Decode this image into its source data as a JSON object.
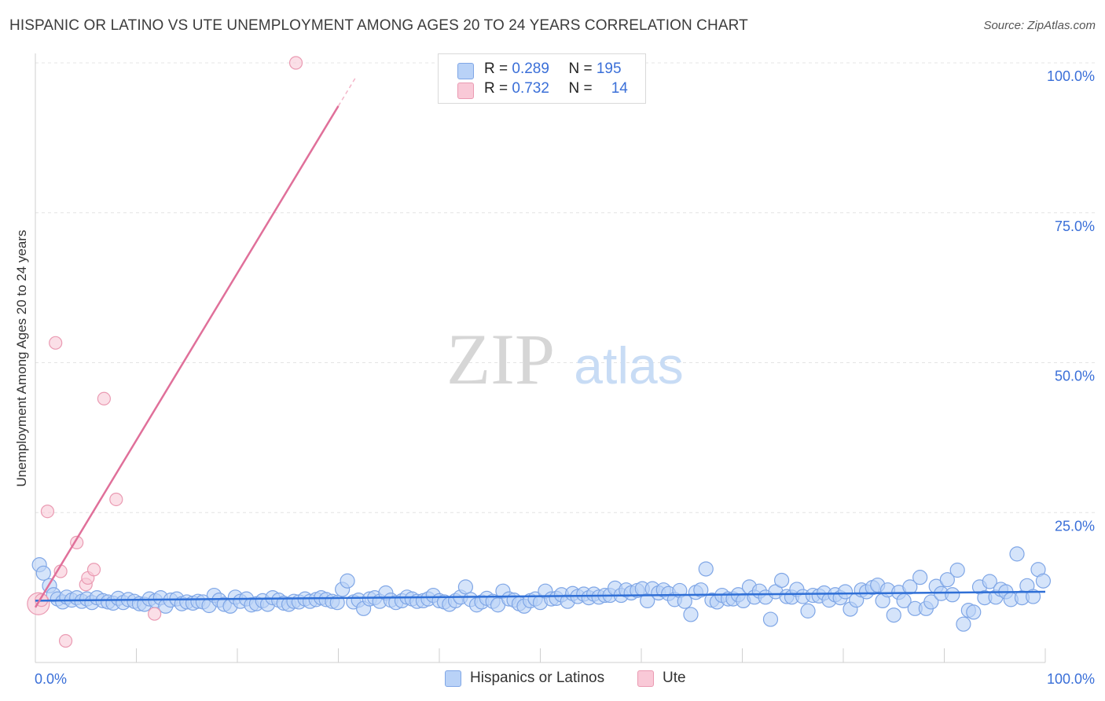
{
  "header": {
    "title": "HISPANIC OR LATINO VS UTE UNEMPLOYMENT AMONG AGES 20 TO 24 YEARS CORRELATION CHART",
    "source": "Source: ZipAtlas.com"
  },
  "watermark": {
    "zip": "ZIP",
    "atlas": "atlas"
  },
  "legend": {
    "r_label": "R = ",
    "n_label": "N = ",
    "series": [
      {
        "r": "0.289",
        "n": "195"
      },
      {
        "r": "0.732",
        "n": "14"
      }
    ]
  },
  "bottom_legend": {
    "items": [
      {
        "label": "Hispanics or Latinos"
      },
      {
        "label": "Ute"
      }
    ]
  },
  "chart_data": {
    "type": "scatter",
    "title": "HISPANIC OR LATINO VS UTE UNEMPLOYMENT AMONG AGES 20 TO 24 YEARS CORRELATION CHART",
    "xlabel": "",
    "ylabel": "Unemployment Among Ages 20 to 24 years",
    "xlim": [
      0,
      100
    ],
    "ylim": [
      0,
      100
    ],
    "x_tick_labels": [
      {
        "value": 0,
        "label": "0.0%"
      },
      {
        "value": 100,
        "label": "100.0%"
      }
    ],
    "y_tick_labels": [
      {
        "value": 25,
        "label": "25.0%"
      },
      {
        "value": 50,
        "label": "50.0%"
      },
      {
        "value": 75,
        "label": "75.0%"
      },
      {
        "value": 100,
        "label": "100.0%"
      }
    ],
    "colors": {
      "blue_fill": "#b9d2f7",
      "blue_stroke": "#7fa6e6",
      "blue_line": "#2f6fd6",
      "pink_fill": "#f9c9d7",
      "pink_stroke": "#ea9ab2",
      "pink_line": "#e0709a",
      "tick_label": "#3a6fd8",
      "grid": "#e4e4e4"
    },
    "series": [
      {
        "name": "Hispanics or Latinos",
        "r": 0.289,
        "n": 195,
        "trend": {
          "x0": 0,
          "y0": 10.3,
          "x1": 100,
          "y1": 11.8
        },
        "points": [
          [
            0.4,
            16.3
          ],
          [
            0.8,
            14.9
          ],
          [
            1.4,
            12.8
          ],
          [
            1.8,
            11.3
          ],
          [
            2.2,
            10.6
          ],
          [
            2.7,
            10.1
          ],
          [
            3.1,
            10.9
          ],
          [
            3.6,
            10.4
          ],
          [
            4.1,
            10.8
          ],
          [
            4.6,
            10.2
          ],
          [
            5.1,
            10.6
          ],
          [
            5.6,
            10.0
          ],
          [
            6.1,
            10.8
          ],
          [
            6.7,
            10.3
          ],
          [
            7.2,
            10.1
          ],
          [
            7.7,
            9.9
          ],
          [
            8.2,
            10.7
          ],
          [
            8.7,
            10.0
          ],
          [
            9.2,
            10.5
          ],
          [
            9.8,
            10.2
          ],
          [
            10.3,
            9.8
          ],
          [
            10.8,
            9.7
          ],
          [
            11.3,
            10.6
          ],
          [
            11.9,
            10.3
          ],
          [
            12.4,
            10.8
          ],
          [
            12.9,
            9.4
          ],
          [
            13.4,
            10.4
          ],
          [
            14.0,
            10.6
          ],
          [
            14.5,
            9.8
          ],
          [
            15.0,
            10.1
          ],
          [
            15.6,
            9.9
          ],
          [
            16.1,
            10.2
          ],
          [
            16.6,
            10.1
          ],
          [
            17.2,
            9.5
          ],
          [
            17.7,
            11.2
          ],
          [
            18.2,
            10.4
          ],
          [
            18.7,
            9.7
          ],
          [
            19.3,
            9.4
          ],
          [
            19.8,
            10.9
          ],
          [
            20.3,
            10.2
          ],
          [
            20.9,
            10.6
          ],
          [
            21.4,
            9.6
          ],
          [
            21.9,
            9.8
          ],
          [
            22.5,
            10.3
          ],
          [
            23.0,
            9.7
          ],
          [
            23.5,
            10.8
          ],
          [
            24.1,
            10.4
          ],
          [
            24.6,
            9.9
          ],
          [
            25.1,
            9.7
          ],
          [
            25.6,
            10.2
          ],
          [
            26.1,
            10.1
          ],
          [
            26.7,
            10.6
          ],
          [
            27.2,
            10.2
          ],
          [
            27.8,
            10.5
          ],
          [
            28.3,
            10.8
          ],
          [
            28.8,
            10.5
          ],
          [
            29.4,
            10.2
          ],
          [
            29.9,
            10.0
          ],
          [
            30.4,
            12.2
          ],
          [
            30.9,
            13.6
          ],
          [
            31.5,
            10.1
          ],
          [
            32.0,
            10.4
          ],
          [
            32.5,
            9.0
          ],
          [
            33.1,
            10.6
          ],
          [
            33.6,
            10.8
          ],
          [
            34.1,
            10.2
          ],
          [
            34.7,
            11.6
          ],
          [
            35.2,
            10.4
          ],
          [
            35.7,
            10.0
          ],
          [
            36.3,
            10.3
          ],
          [
            36.8,
            10.9
          ],
          [
            37.3,
            10.6
          ],
          [
            37.8,
            10.2
          ],
          [
            38.4,
            10.3
          ],
          [
            38.9,
            10.6
          ],
          [
            39.4,
            11.2
          ],
          [
            40.0,
            10.3
          ],
          [
            40.5,
            10.1
          ],
          [
            41.0,
            9.7
          ],
          [
            41.6,
            10.3
          ],
          [
            42.1,
            10.9
          ],
          [
            42.6,
            12.6
          ],
          [
            43.1,
            10.5
          ],
          [
            43.7,
            9.6
          ],
          [
            44.2,
            10.1
          ],
          [
            44.7,
            10.7
          ],
          [
            45.3,
            10.2
          ],
          [
            45.8,
            9.6
          ],
          [
            46.3,
            11.9
          ],
          [
            46.9,
            10.6
          ],
          [
            47.4,
            10.4
          ],
          [
            47.9,
            9.8
          ],
          [
            48.4,
            9.4
          ],
          [
            49.0,
            10.3
          ],
          [
            49.5,
            10.6
          ],
          [
            50.0,
            10.0
          ],
          [
            50.5,
            11.9
          ],
          [
            51.1,
            10.6
          ],
          [
            51.6,
            10.7
          ],
          [
            52.1,
            11.3
          ],
          [
            52.7,
            10.2
          ],
          [
            53.2,
            11.5
          ],
          [
            53.7,
            11.0
          ],
          [
            54.3,
            11.4
          ],
          [
            54.8,
            10.8
          ],
          [
            55.3,
            11.4
          ],
          [
            55.8,
            10.9
          ],
          [
            56.4,
            11.2
          ],
          [
            56.9,
            11.2
          ],
          [
            57.4,
            12.4
          ],
          [
            58.0,
            11.2
          ],
          [
            58.5,
            12.1
          ],
          [
            59.0,
            11.6
          ],
          [
            59.6,
            12.0
          ],
          [
            60.1,
            12.3
          ],
          [
            60.6,
            10.3
          ],
          [
            61.1,
            12.3
          ],
          [
            61.7,
            11.6
          ],
          [
            62.2,
            12.1
          ],
          [
            62.7,
            11.5
          ],
          [
            63.3,
            10.5
          ],
          [
            63.8,
            12.0
          ],
          [
            64.3,
            10.2
          ],
          [
            64.9,
            8.0
          ],
          [
            65.4,
            11.7
          ],
          [
            65.9,
            12.1
          ],
          [
            66.4,
            15.6
          ],
          [
            67.0,
            10.4
          ],
          [
            67.5,
            10.1
          ],
          [
            68.0,
            11.2
          ],
          [
            68.6,
            10.6
          ],
          [
            69.1,
            10.6
          ],
          [
            69.6,
            11.3
          ],
          [
            70.1,
            10.3
          ],
          [
            70.7,
            12.6
          ],
          [
            71.2,
            10.9
          ],
          [
            71.7,
            11.9
          ],
          [
            72.3,
            10.9
          ],
          [
            72.8,
            7.2
          ],
          [
            73.3,
            11.8
          ],
          [
            73.9,
            13.7
          ],
          [
            74.4,
            11.0
          ],
          [
            74.9,
            10.9
          ],
          [
            75.4,
            12.2
          ],
          [
            76.0,
            11.0
          ],
          [
            76.5,
            8.6
          ],
          [
            77.0,
            11.2
          ],
          [
            77.6,
            11.1
          ],
          [
            78.1,
            11.6
          ],
          [
            78.6,
            10.4
          ],
          [
            79.2,
            11.3
          ],
          [
            79.7,
            10.8
          ],
          [
            80.2,
            11.8
          ],
          [
            80.7,
            8.9
          ],
          [
            81.3,
            10.4
          ],
          [
            81.8,
            12.1
          ],
          [
            82.3,
            11.8
          ],
          [
            82.9,
            12.5
          ],
          [
            83.4,
            12.9
          ],
          [
            83.9,
            10.3
          ],
          [
            84.4,
            12.1
          ],
          [
            85.0,
            7.9
          ],
          [
            85.5,
            11.7
          ],
          [
            86.0,
            10.3
          ],
          [
            86.6,
            12.6
          ],
          [
            87.1,
            9.0
          ],
          [
            87.6,
            14.2
          ],
          [
            88.2,
            9.0
          ],
          [
            88.7,
            10.1
          ],
          [
            89.2,
            12.7
          ],
          [
            89.7,
            11.5
          ],
          [
            90.3,
            13.8
          ],
          [
            90.8,
            11.3
          ],
          [
            91.3,
            15.4
          ],
          [
            91.9,
            6.4
          ],
          [
            92.4,
            8.7
          ],
          [
            92.9,
            8.4
          ],
          [
            93.5,
            12.6
          ],
          [
            94.0,
            10.8
          ],
          [
            94.5,
            13.5
          ],
          [
            95.1,
            10.9
          ],
          [
            95.6,
            12.2
          ],
          [
            96.1,
            11.8
          ],
          [
            96.6,
            10.5
          ],
          [
            97.2,
            18.1
          ],
          [
            97.7,
            10.8
          ],
          [
            98.2,
            12.8
          ],
          [
            98.8,
            11.0
          ],
          [
            99.3,
            15.5
          ],
          [
            99.8,
            13.6
          ]
        ]
      },
      {
        "name": "Ute",
        "r": 0.732,
        "n": 14,
        "trend": {
          "x0": 0,
          "y0": 9.2,
          "x1": 30,
          "y1": 92.8
        },
        "trend_dashed": {
          "x0": 30,
          "y0": 92.8,
          "x1": 31.8,
          "y1": 97.8
        },
        "points": [
          [
            0.3,
            9.8
          ],
          [
            0.6,
            10.4
          ],
          [
            1.2,
            25.2
          ],
          [
            2.0,
            53.3
          ],
          [
            2.5,
            15.2
          ],
          [
            3.0,
            3.6
          ],
          [
            4.1,
            20.0
          ],
          [
            5.0,
            13.0
          ],
          [
            5.2,
            14.1
          ],
          [
            5.8,
            15.5
          ],
          [
            6.8,
            44.0
          ],
          [
            8.0,
            27.2
          ],
          [
            11.8,
            8.1
          ],
          [
            25.8,
            100.0
          ]
        ]
      }
    ]
  }
}
